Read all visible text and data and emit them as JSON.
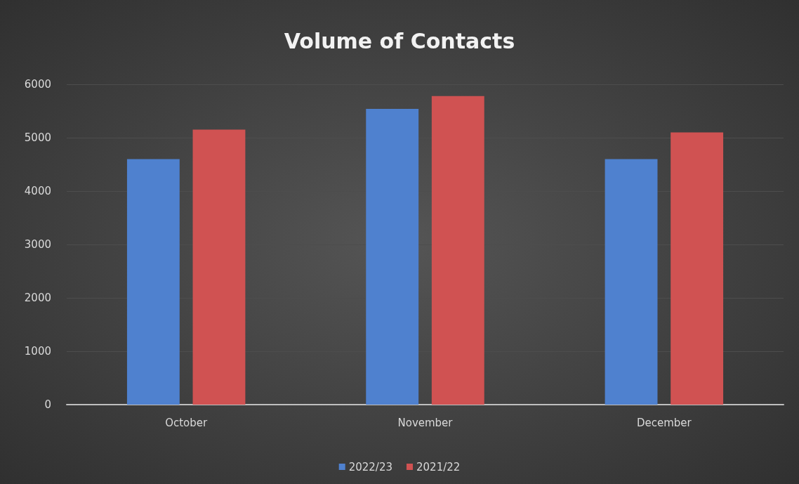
{
  "chart_data": {
    "type": "bar",
    "title": "Volume of Contacts",
    "categories": [
      "October",
      "November",
      "December"
    ],
    "series": [
      {
        "name": "2022/23",
        "color": "#4f81cf",
        "values": [
          4600,
          5540,
          4600
        ]
      },
      {
        "name": "2021/22",
        "color": "#d05252",
        "values": [
          5150,
          5780,
          5100
        ]
      }
    ],
    "ylim": [
      0,
      6000
    ],
    "yticks": [
      0,
      1000,
      2000,
      3000,
      4000,
      5000,
      6000
    ],
    "grid": "y",
    "legend": "bottom"
  }
}
